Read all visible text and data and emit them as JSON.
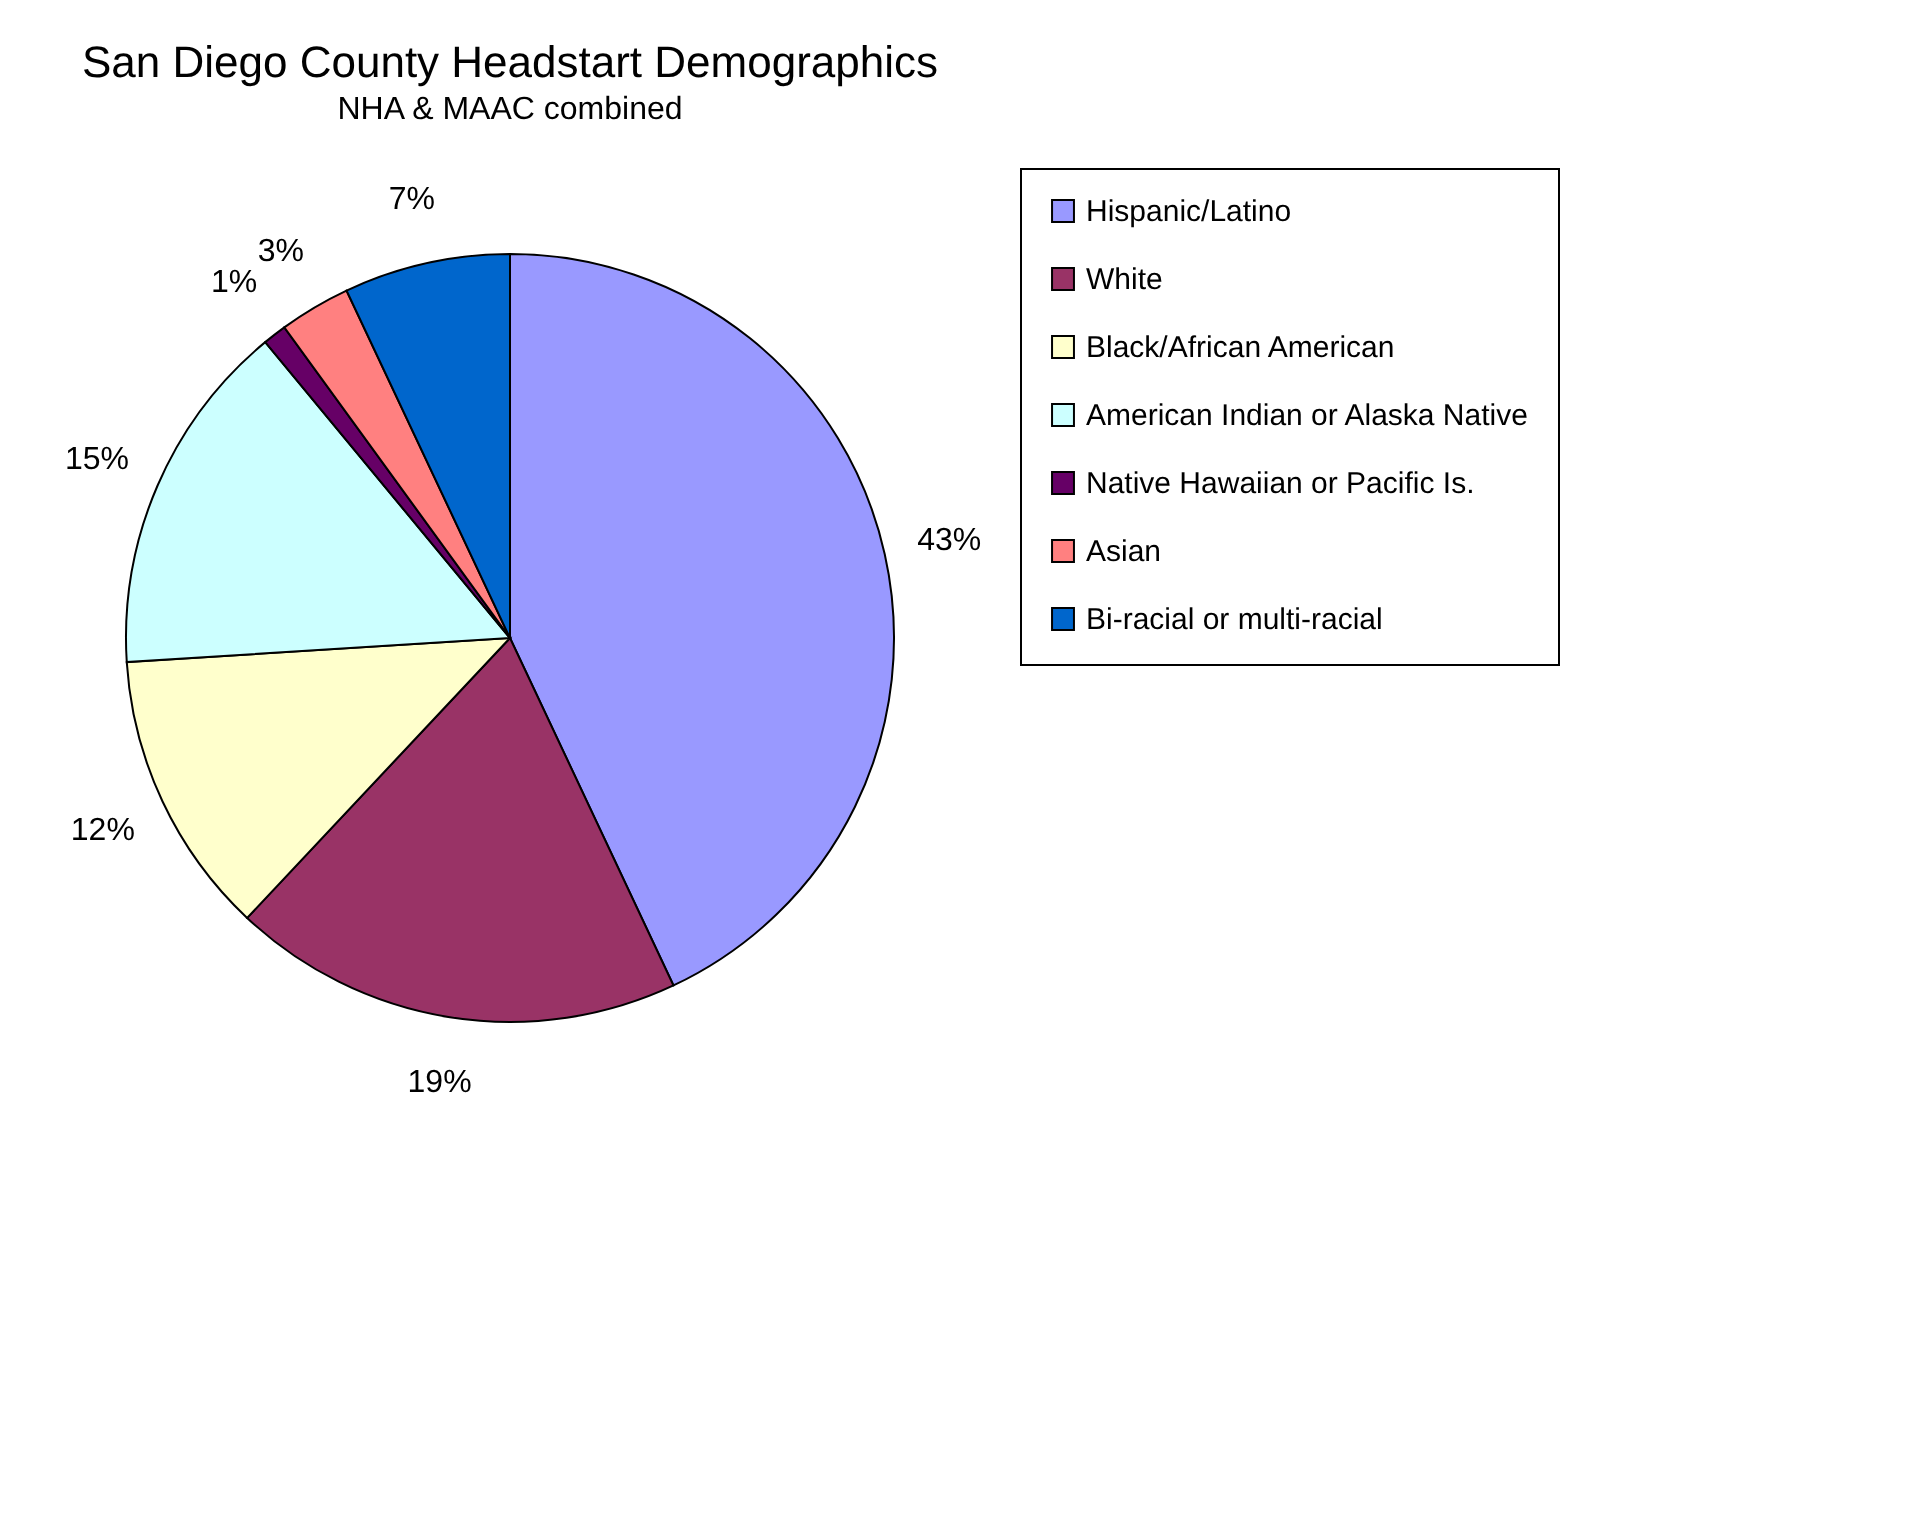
{
  "chart_data": {
    "type": "pie",
    "title": "San Diego County Headstart Demographics",
    "subtitle": "NHA & MAAC combined",
    "categories": [
      "Hispanic/Latino",
      "White",
      "Black/African American",
      "American Indian or Alaska Native",
      "Native Hawaiian or Pacific Is.",
      "Asian",
      "Bi-racial or multi-racial"
    ],
    "values": [
      43,
      19,
      12,
      15,
      1,
      3,
      7
    ],
    "colors": [
      "#9999ff",
      "#993366",
      "#ffffcc",
      "#ccffff",
      "#660066",
      "#ff8080",
      "#0066cc"
    ],
    "value_labels": [
      "43%",
      "19%",
      "12%",
      "15%",
      "1%",
      "3%",
      "7%"
    ],
    "legend": "right"
  }
}
